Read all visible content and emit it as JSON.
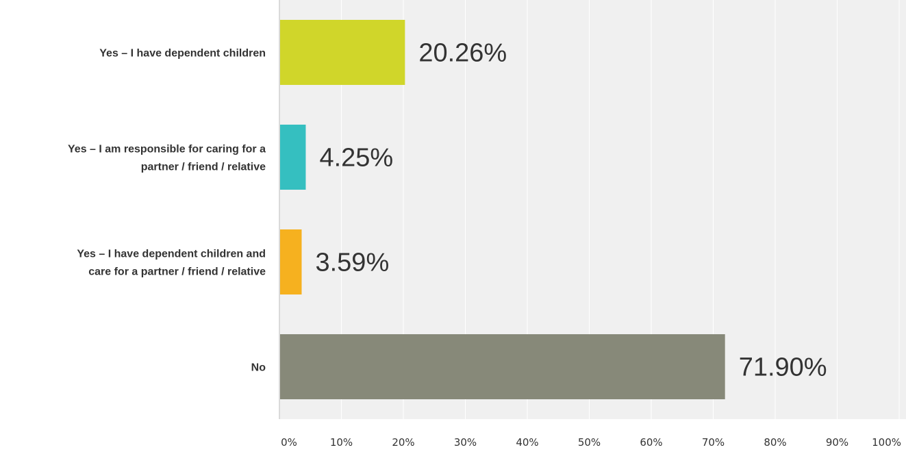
{
  "chart_data": {
    "type": "bar",
    "orientation": "horizontal",
    "categories": [
      [
        "Yes – I have dependent children"
      ],
      [
        "Yes – I am responsible for caring for a",
        "partner / friend / relative"
      ],
      [
        "Yes – I have dependent children and",
        "care for a partner / friend / relative"
      ],
      [
        "No"
      ]
    ],
    "values": [
      20.26,
      4.25,
      3.59,
      71.9
    ],
    "value_labels": [
      "20.26%",
      "4.25%",
      "3.59%",
      "71.90%"
    ],
    "colors": [
      "#d0d62a",
      "#35bfc0",
      "#f6b11f",
      "#878979"
    ],
    "xlim": [
      0,
      100
    ],
    "x_ticks": [
      0,
      10,
      20,
      30,
      40,
      50,
      60,
      70,
      80,
      90,
      100
    ],
    "x_tick_labels": [
      "0%",
      "10%",
      "20%",
      "30%",
      "40%",
      "50%",
      "60%",
      "70%",
      "80%",
      "90%",
      "100%"
    ],
    "grid": true,
    "title": "",
    "xlabel": "",
    "ylabel": ""
  },
  "colors": {
    "plot_background": "#f0f0f0",
    "gridline": "#ffffff",
    "axis": "#bdbdbd",
    "text": "#333333"
  }
}
